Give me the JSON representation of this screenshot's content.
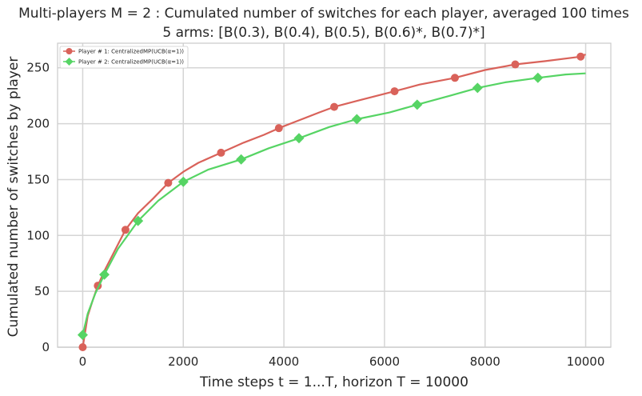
{
  "chart_data": {
    "type": "line",
    "title": "Multi-players M = 2 : Cumulated number of switches for each player, averaged 100 times",
    "subtitle": "5 arms: [B(0.3), B(0.4), B(0.5), B(0.6)*, B(0.7)*]",
    "xlabel": "Time steps t = 1...T, horizon T = 10000",
    "ylabel": "Cumulated number of switches by player",
    "xlim": [
      -500,
      10500
    ],
    "ylim": [
      0,
      272
    ],
    "xticks": [
      0,
      2000,
      4000,
      6000,
      8000,
      10000
    ],
    "yticks": [
      0,
      50,
      100,
      150,
      200,
      250
    ],
    "grid": true,
    "legend_position": "top-left",
    "series": [
      {
        "name": "Player # 1: CentralizedMP(UCB(α=1))",
        "color": "#d9625a",
        "marker": "circle",
        "x": [
          0,
          100,
          200,
          300,
          450,
          600,
          850,
          1100,
          1400,
          1700,
          2000,
          2300,
          2750,
          3200,
          3600,
          3900,
          4300,
          4700,
          5000,
          5500,
          6200,
          6700,
          7400,
          8000,
          8600,
          9200,
          9900,
          10000
        ],
        "values": [
          0,
          28,
          42,
          55,
          70,
          83,
          105,
          120,
          133,
          147,
          157,
          165,
          174,
          183,
          190,
          196,
          203,
          210,
          215,
          221,
          229,
          235,
          241,
          248,
          253,
          256,
          260,
          262
        ],
        "markers_x": [
          0,
          300,
          850,
          1700,
          2750,
          3900,
          5000,
          6200,
          7400,
          8600,
          9900
        ],
        "markers_y": [
          0,
          55,
          105,
          147,
          174,
          196,
          215,
          229,
          241,
          253,
          260
        ]
      },
      {
        "name": "Player # 2: CentralizedMP(UCB(α=1))",
        "color": "#56d464",
        "marker": "diamond",
        "x": [
          0,
          100,
          250,
          430,
          700,
          1100,
          1500,
          2000,
          2500,
          3150,
          3700,
          4300,
          4900,
          5450,
          6100,
          6650,
          7300,
          7850,
          8400,
          9050,
          9600,
          10000
        ],
        "values": [
          11,
          30,
          48,
          65,
          88,
          113,
          131,
          148,
          159,
          168,
          178,
          187,
          197,
          204,
          210,
          217,
          225,
          232,
          237,
          241,
          244,
          245
        ],
        "markers_x": [
          0,
          430,
          1100,
          2000,
          3150,
          4300,
          5450,
          6650,
          7850,
          9050
        ],
        "markers_y": [
          11,
          65,
          113,
          148,
          168,
          187,
          204,
          217,
          232,
          241
        ]
      }
    ]
  }
}
